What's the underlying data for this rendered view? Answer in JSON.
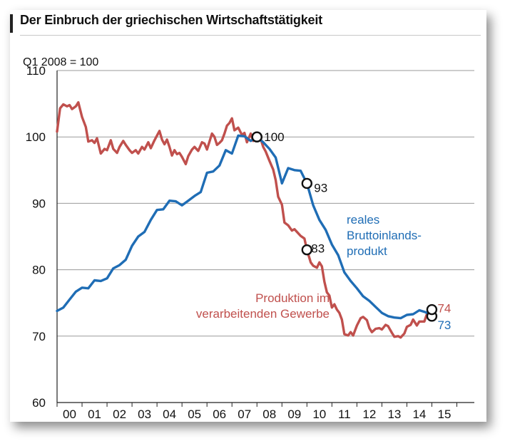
{
  "chart_data": {
    "type": "line",
    "title": "Der Einbruch der griechischen Wirtschaftstätigkeit",
    "subtitle": "Q1 2008 = 100",
    "xlabel": "",
    "ylabel": "",
    "xlim": [
      2000.0,
      2016.7
    ],
    "ylim": [
      60,
      110
    ],
    "yticks": [
      60,
      70,
      80,
      90,
      100,
      110
    ],
    "xtick_labels": [
      "00",
      "01",
      "02",
      "03",
      "04",
      "05",
      "06",
      "07",
      "08",
      "09",
      "10",
      "11",
      "12",
      "13",
      "14",
      "15"
    ],
    "grid": "horizontal",
    "colors": {
      "gdp": "#1f6db5",
      "manufacturing": "#c0504d"
    },
    "series": [
      {
        "key": "gdp",
        "name": "reales Bruttoinlandsprodukt",
        "label_lines": [
          "reales",
          "Bruttoinlands-",
          "produkt"
        ],
        "points": [
          [
            2000.0,
            73.8
          ],
          [
            2000.25,
            74.3
          ],
          [
            2000.5,
            75.5
          ],
          [
            2000.75,
            76.7
          ],
          [
            2001.0,
            77.3
          ],
          [
            2001.25,
            77.2
          ],
          [
            2001.5,
            78.4
          ],
          [
            2001.75,
            78.3
          ],
          [
            2002.0,
            78.7
          ],
          [
            2002.25,
            80.2
          ],
          [
            2002.5,
            80.7
          ],
          [
            2002.75,
            81.5
          ],
          [
            2003.0,
            83.6
          ],
          [
            2003.25,
            85.0
          ],
          [
            2003.5,
            85.7
          ],
          [
            2003.75,
            87.5
          ],
          [
            2004.0,
            89.0
          ],
          [
            2004.25,
            89.1
          ],
          [
            2004.5,
            90.4
          ],
          [
            2004.75,
            90.3
          ],
          [
            2005.0,
            89.7
          ],
          [
            2005.25,
            90.4
          ],
          [
            2005.5,
            91.1
          ],
          [
            2005.75,
            91.7
          ],
          [
            2006.0,
            94.6
          ],
          [
            2006.25,
            94.8
          ],
          [
            2006.5,
            95.7
          ],
          [
            2006.75,
            98.0
          ],
          [
            2007.0,
            97.5
          ],
          [
            2007.25,
            100.2
          ],
          [
            2007.5,
            100.1
          ],
          [
            2007.75,
            99.4
          ],
          [
            2008.0,
            100.0
          ],
          [
            2008.25,
            99.2
          ],
          [
            2008.5,
            98.2
          ],
          [
            2008.75,
            96.9
          ],
          [
            2009.0,
            93.0
          ],
          [
            2009.25,
            95.3
          ],
          [
            2009.5,
            95.0
          ],
          [
            2009.75,
            94.9
          ],
          [
            2010.0,
            93.0
          ],
          [
            2010.25,
            89.7
          ],
          [
            2010.5,
            87.5
          ],
          [
            2010.75,
            86.0
          ],
          [
            2011.0,
            83.8
          ],
          [
            2011.25,
            82.2
          ],
          [
            2011.5,
            79.6
          ],
          [
            2011.75,
            78.3
          ],
          [
            2012.0,
            77.2
          ],
          [
            2012.25,
            76.0
          ],
          [
            2012.5,
            75.3
          ],
          [
            2012.75,
            74.4
          ],
          [
            2013.0,
            73.5
          ],
          [
            2013.25,
            73.0
          ],
          [
            2013.5,
            72.8
          ],
          [
            2013.75,
            72.7
          ],
          [
            2014.0,
            73.2
          ],
          [
            2014.25,
            73.3
          ],
          [
            2014.5,
            73.9
          ],
          [
            2014.75,
            73.6
          ],
          [
            2015.0,
            73.0
          ]
        ],
        "markers": [
          [
            2008.0,
            100.0,
            "100"
          ],
          [
            2010.0,
            93.0,
            "93"
          ],
          [
            2015.0,
            73.0,
            "73"
          ]
        ]
      },
      {
        "key": "manufacturing",
        "name": "Produktion im verarbeitenden Gewerbe",
        "label_lines": [
          "Produktion im",
          "verarbeitenden Gewerbe"
        ],
        "points": [
          [
            2000.0,
            100.8
          ],
          [
            2000.12,
            104.3
          ],
          [
            2000.25,
            104.9
          ],
          [
            2000.4,
            104.6
          ],
          [
            2000.5,
            104.8
          ],
          [
            2000.6,
            104.2
          ],
          [
            2000.75,
            104.6
          ],
          [
            2000.85,
            105.2
          ],
          [
            2001.0,
            103.0
          ],
          [
            2001.15,
            101.5
          ],
          [
            2001.25,
            99.3
          ],
          [
            2001.4,
            99.5
          ],
          [
            2001.5,
            99.1
          ],
          [
            2001.6,
            99.8
          ],
          [
            2001.75,
            97.5
          ],
          [
            2001.9,
            98.2
          ],
          [
            2002.0,
            98.0
          ],
          [
            2002.15,
            99.5
          ],
          [
            2002.25,
            98.2
          ],
          [
            2002.4,
            97.6
          ],
          [
            2002.5,
            98.5
          ],
          [
            2002.65,
            99.4
          ],
          [
            2002.75,
            98.8
          ],
          [
            2002.9,
            98.0
          ],
          [
            2003.0,
            97.6
          ],
          [
            2003.15,
            98.0
          ],
          [
            2003.25,
            97.5
          ],
          [
            2003.4,
            98.5
          ],
          [
            2003.5,
            98.1
          ],
          [
            2003.65,
            99.2
          ],
          [
            2003.75,
            98.3
          ],
          [
            2003.9,
            99.5
          ],
          [
            2004.0,
            100.2
          ],
          [
            2004.1,
            100.9
          ],
          [
            2004.2,
            99.6
          ],
          [
            2004.3,
            98.9
          ],
          [
            2004.4,
            99.6
          ],
          [
            2004.5,
            98.5
          ],
          [
            2004.6,
            97.2
          ],
          [
            2004.7,
            98.0
          ],
          [
            2004.8,
            97.4
          ],
          [
            2004.9,
            97.6
          ],
          [
            2005.0,
            97.0
          ],
          [
            2005.15,
            95.9
          ],
          [
            2005.25,
            97.1
          ],
          [
            2005.4,
            98.1
          ],
          [
            2005.5,
            98.5
          ],
          [
            2005.65,
            97.9
          ],
          [
            2005.8,
            99.2
          ],
          [
            2005.9,
            99.0
          ],
          [
            2006.0,
            98.1
          ],
          [
            2006.1,
            99.3
          ],
          [
            2006.2,
            100.5
          ],
          [
            2006.3,
            100.0
          ],
          [
            2006.4,
            98.8
          ],
          [
            2006.5,
            99.1
          ],
          [
            2006.6,
            99.5
          ],
          [
            2006.7,
            100.5
          ],
          [
            2006.8,
            101.7
          ],
          [
            2006.9,
            102.1
          ],
          [
            2007.0,
            102.8
          ],
          [
            2007.1,
            101.0
          ],
          [
            2007.25,
            101.4
          ],
          [
            2007.4,
            100.3
          ],
          [
            2007.5,
            100.6
          ],
          [
            2007.6,
            99.2
          ],
          [
            2007.75,
            100.5
          ],
          [
            2007.85,
            99.4
          ],
          [
            2008.0,
            100.0
          ],
          [
            2008.15,
            99.7
          ],
          [
            2008.25,
            98.5
          ],
          [
            2008.35,
            97.8
          ],
          [
            2008.5,
            96.4
          ],
          [
            2008.65,
            95.1
          ],
          [
            2008.75,
            93.5
          ],
          [
            2008.85,
            91.0
          ],
          [
            2009.0,
            89.8
          ],
          [
            2009.1,
            87.1
          ],
          [
            2009.25,
            86.7
          ],
          [
            2009.4,
            85.9
          ],
          [
            2009.5,
            86.1
          ],
          [
            2009.65,
            85.5
          ],
          [
            2009.75,
            85.1
          ],
          [
            2009.9,
            84.7
          ],
          [
            2010.0,
            83.0
          ],
          [
            2010.15,
            81.1
          ],
          [
            2010.25,
            80.6
          ],
          [
            2010.4,
            80.3
          ],
          [
            2010.5,
            81.1
          ],
          [
            2010.6,
            80.5
          ],
          [
            2010.7,
            78.2
          ],
          [
            2010.8,
            76.6
          ],
          [
            2010.9,
            76.1
          ],
          [
            2011.0,
            74.3
          ],
          [
            2011.1,
            74.8
          ],
          [
            2011.2,
            74.0
          ],
          [
            2011.3,
            73.5
          ],
          [
            2011.4,
            72.5
          ],
          [
            2011.5,
            70.3
          ],
          [
            2011.65,
            70.1
          ],
          [
            2011.75,
            70.6
          ],
          [
            2011.85,
            70.1
          ],
          [
            2012.0,
            71.6
          ],
          [
            2012.15,
            72.7
          ],
          [
            2012.25,
            72.9
          ],
          [
            2012.4,
            72.4
          ],
          [
            2012.5,
            71.2
          ],
          [
            2012.6,
            70.6
          ],
          [
            2012.75,
            71.1
          ],
          [
            2012.9,
            71.2
          ],
          [
            2013.0,
            71.0
          ],
          [
            2013.15,
            71.7
          ],
          [
            2013.25,
            71.5
          ],
          [
            2013.4,
            70.5
          ],
          [
            2013.5,
            69.9
          ],
          [
            2013.65,
            70.0
          ],
          [
            2013.75,
            69.8
          ],
          [
            2013.9,
            70.4
          ],
          [
            2014.0,
            71.4
          ],
          [
            2014.15,
            71.7
          ],
          [
            2014.25,
            72.5
          ],
          [
            2014.4,
            71.6
          ],
          [
            2014.5,
            72.2
          ],
          [
            2014.6,
            72.2
          ],
          [
            2014.7,
            72.2
          ],
          [
            2014.8,
            73.3
          ],
          [
            2014.9,
            74.0
          ],
          [
            2015.0,
            74.0
          ]
        ],
        "markers": [
          [
            2008.0,
            100.0,
            ""
          ],
          [
            2010.0,
            83.0,
            "83"
          ],
          [
            2015.0,
            74.0,
            "74"
          ]
        ]
      }
    ]
  }
}
